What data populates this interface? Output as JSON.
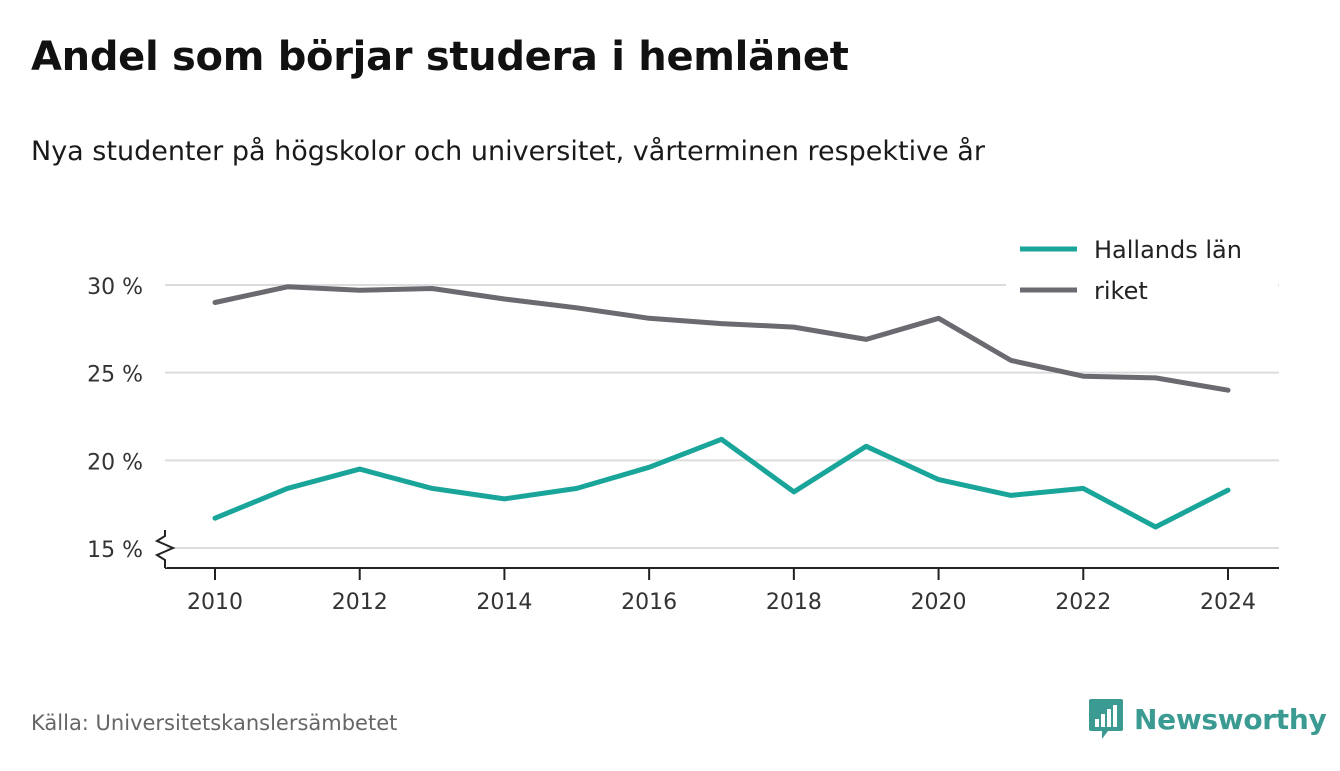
{
  "header": {
    "title": "Andel som börjar studera i hemlänet",
    "subtitle": "Nya studenter på högskolor och universitet, vårterminen respektive år"
  },
  "footer": {
    "source": "Källa: Universitetskanslersämbetet",
    "brand": "Newsworthy",
    "brand_icon": "bar-chart-speech-bubble-icon"
  },
  "chart_data": {
    "type": "line",
    "x": [
      2010,
      2011,
      2012,
      2013,
      2014,
      2015,
      2016,
      2017,
      2018,
      2019,
      2020,
      2021,
      2022,
      2023,
      2024
    ],
    "series": [
      {
        "name": "Hallands län",
        "color": "#1aa59a",
        "values": [
          16.7,
          18.4,
          19.5,
          18.4,
          17.8,
          18.4,
          19.6,
          21.2,
          18.2,
          20.8,
          18.9,
          18.0,
          18.4,
          16.2,
          18.3
        ]
      },
      {
        "name": "riket",
        "color": "#6b6a70",
        "values": [
          29.0,
          29.9,
          29.7,
          29.8,
          29.2,
          28.7,
          28.1,
          27.8,
          27.6,
          26.9,
          28.1,
          25.7,
          24.8,
          24.7,
          24.0
        ]
      }
    ],
    "xticks": [
      "2010",
      "2012",
      "2014",
      "2016",
      "2018",
      "2020",
      "2022",
      "2024"
    ],
    "yticks": [
      "15 %",
      "20 %",
      "25 %",
      "30 %"
    ],
    "ytick_values": [
      15,
      20,
      25,
      30
    ],
    "xlim": [
      2010,
      2024
    ],
    "ylim": [
      15,
      30
    ],
    "axis_break": true,
    "grid": true,
    "legend_position": "top-right"
  }
}
